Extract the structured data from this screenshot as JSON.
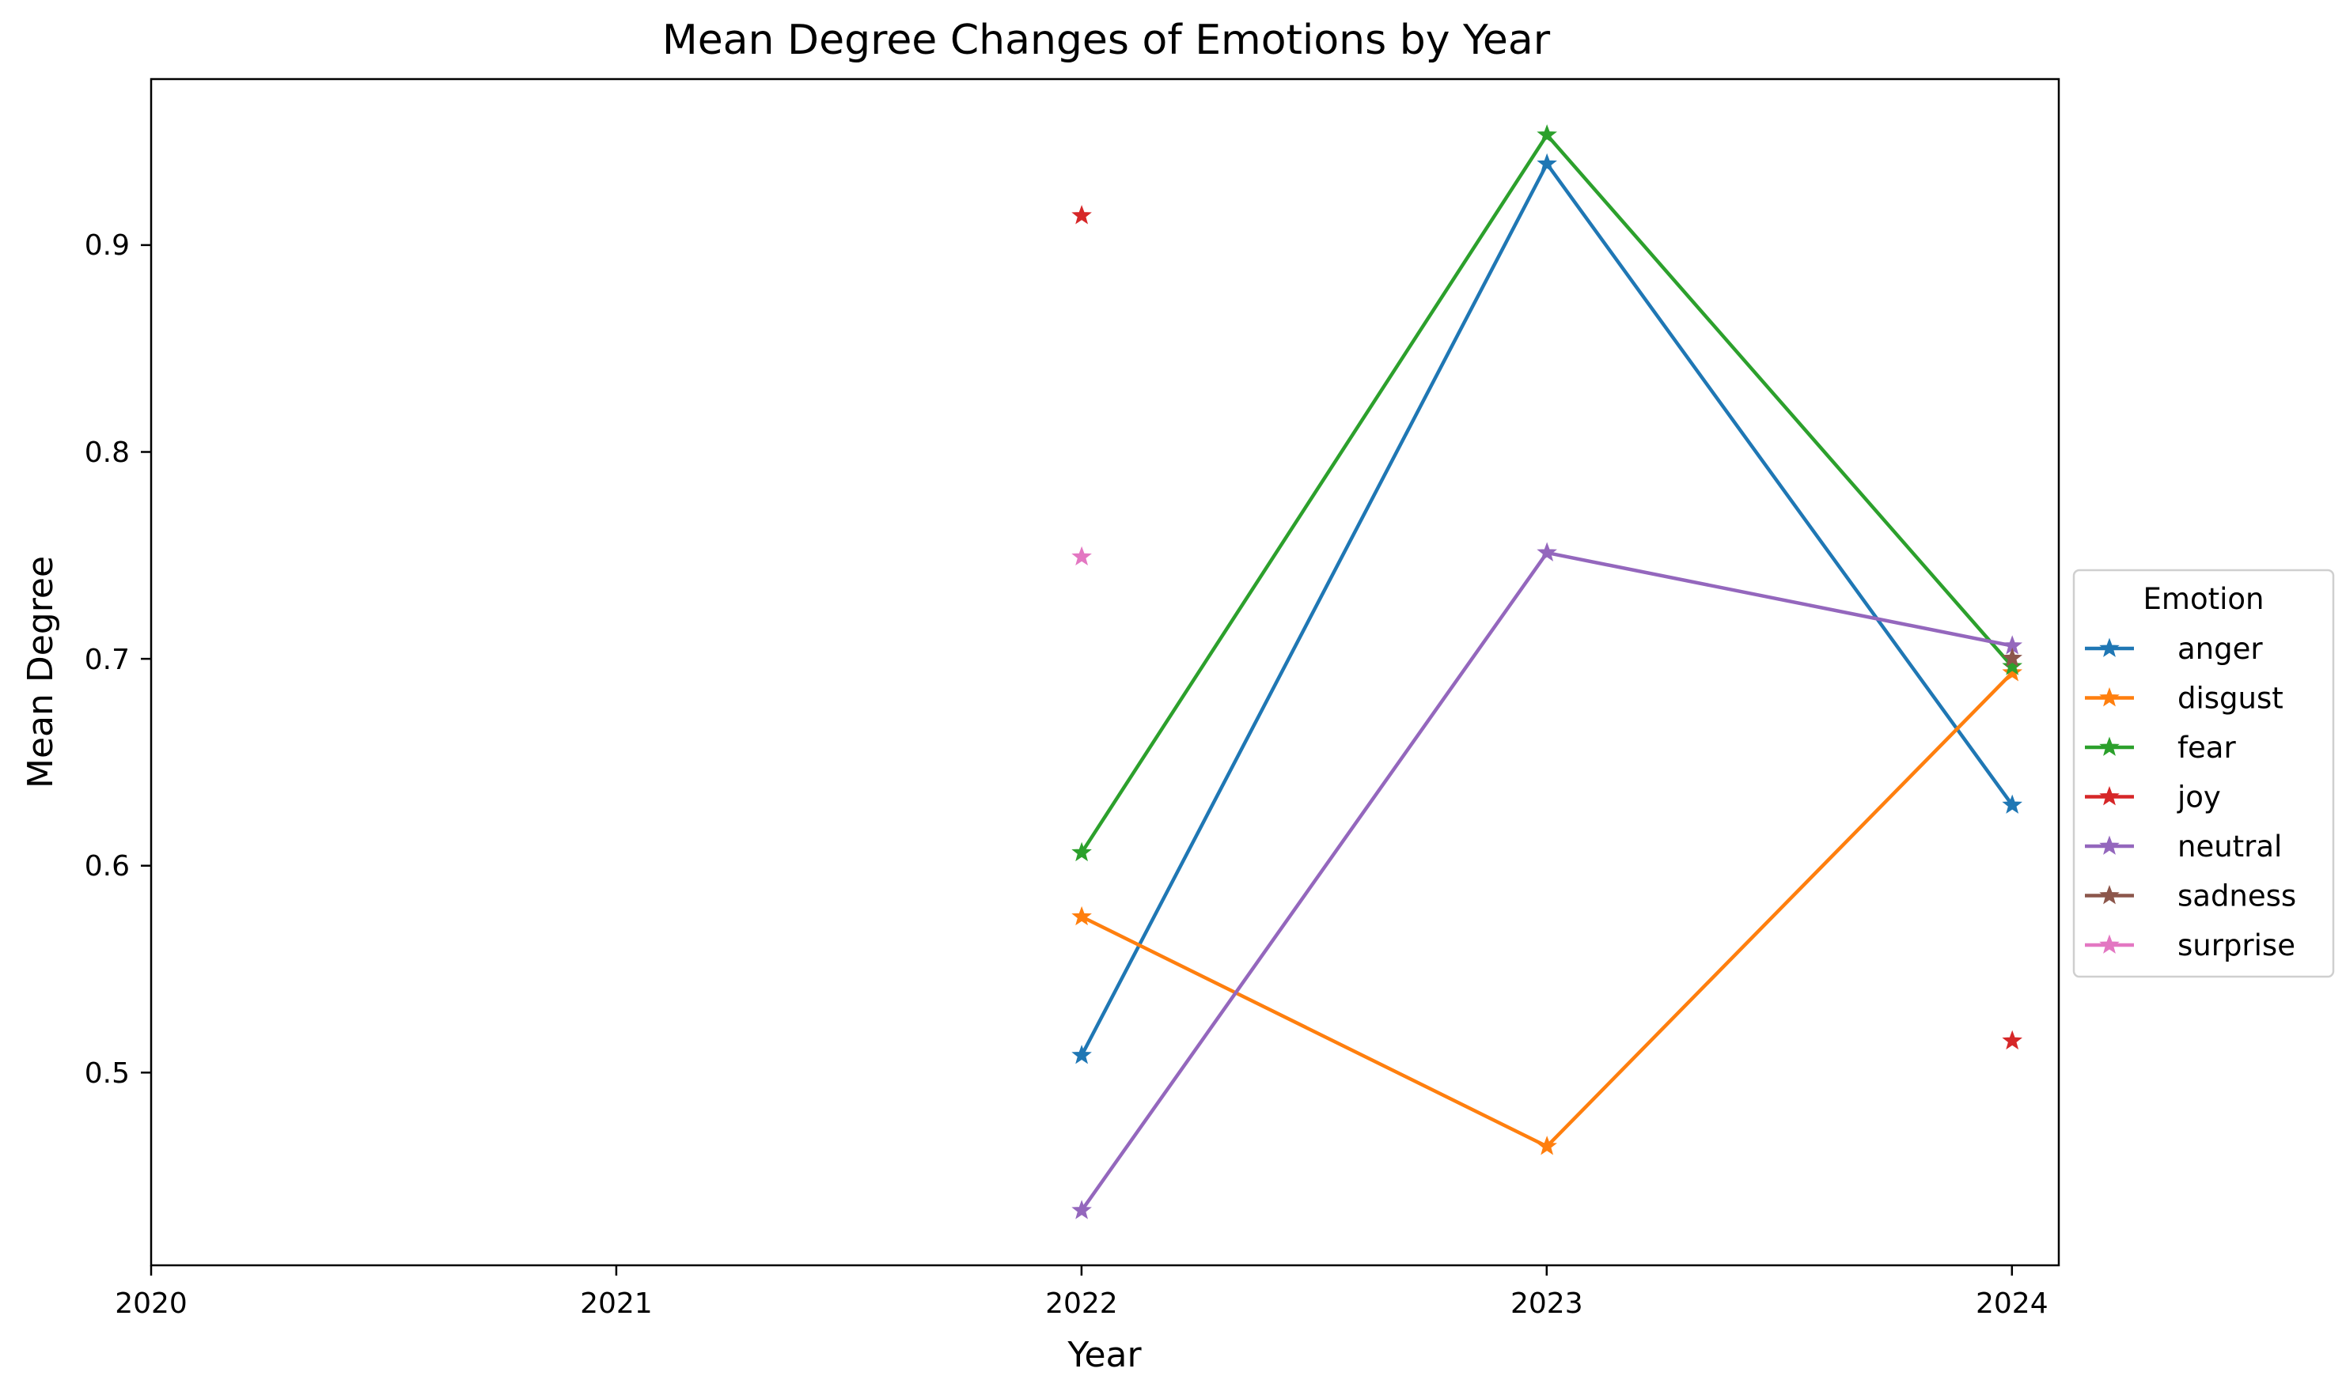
{
  "chart_data": {
    "type": "line",
    "title": "Mean Degree Changes of Emotions by Year",
    "xlabel": "Year",
    "ylabel": "Mean Degree",
    "x_ticks": [
      "2020",
      "2021",
      "2022",
      "2023",
      "2024"
    ],
    "y_ticks": [
      "0.5",
      "0.6",
      "0.7",
      "0.8",
      "0.9"
    ],
    "xlim": [
      2020,
      2024.1
    ],
    "ylim": [
      0.4075,
      0.981
    ],
    "grid": false,
    "marker": "star",
    "legend": {
      "title": "Emotion",
      "placement": "center-right outside plot"
    },
    "series": [
      {
        "name": "anger",
        "color": "#1f77b4",
        "points": [
          [
            2022,
            0.509
          ],
          [
            2023,
            0.94
          ],
          [
            2024,
            0.63
          ]
        ]
      },
      {
        "name": "disgust",
        "color": "#ff7f0e",
        "points": [
          [
            2022,
            0.576
          ],
          [
            2023,
            0.465
          ],
          [
            2024,
            0.694
          ]
        ]
      },
      {
        "name": "fear",
        "color": "#2ca02c",
        "points": [
          [
            2022,
            0.607
          ],
          [
            2023,
            0.954
          ],
          [
            2024,
            0.697
          ]
        ]
      },
      {
        "name": "joy",
        "color": "#d62728",
        "points": [
          [
            2022,
            0.915
          ],
          [
            2024,
            0.516
          ]
        ],
        "segments": [
          [
            [
              2022,
              0.915
            ]
          ],
          [
            [
              2024,
              0.516
            ]
          ]
        ]
      },
      {
        "name": "neutral",
        "color": "#9467bd",
        "points": [
          [
            2022,
            0.434
          ],
          [
            2023,
            0.752
          ],
          [
            2024,
            0.707
          ]
        ]
      },
      {
        "name": "sadness",
        "color": "#8c564b",
        "points": [
          [
            2024,
            0.701
          ]
        ]
      },
      {
        "name": "surprise",
        "color": "#e377c2",
        "points": [
          [
            2022,
            0.75
          ]
        ]
      }
    ]
  }
}
